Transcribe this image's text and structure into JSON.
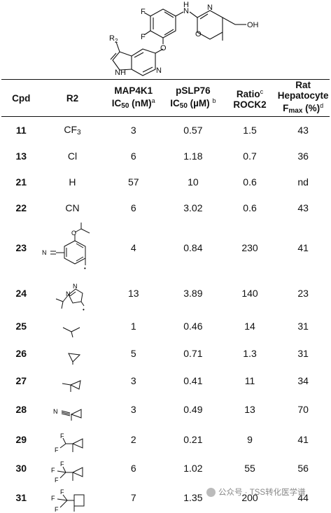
{
  "scaffold": {
    "atoms": {
      "F": "F",
      "N": "N",
      "H": "H",
      "O": "O",
      "OH": "OH",
      "R2": "R",
      "R2sub": "2",
      "NH": "NH"
    }
  },
  "table": {
    "headers": {
      "cpd": "Cpd",
      "r2": "R2",
      "map4k1_l1": "MAP4K1",
      "map4k1_l2a": "IC",
      "map4k1_l2sub": "50",
      "map4k1_l2b": " (nM)",
      "map4k1_sup": "a",
      "pslp76_l1": "pSLP76",
      "pslp76_l2a": "IC",
      "pslp76_l2sub": "50",
      "pslp76_l2b": " (µM) ",
      "pslp76_sup": "b",
      "ratio_l1": "Ratio",
      "ratio_sup": "c",
      "ratio_l2": "ROCK2",
      "rat_l1": "Rat",
      "rat_l2": "Hepatocyte",
      "rat_l3a": "F",
      "rat_l3sub": "max",
      "rat_l3b": " (%)",
      "rat_sup": "d"
    },
    "rows": [
      {
        "cpd": "11",
        "r2_text": "CF",
        "r2_sub": "3",
        "r2_structure": "",
        "map4k1": "3",
        "pslp76": "0.57",
        "ratio": "1.5",
        "fmax": "43"
      },
      {
        "cpd": "13",
        "r2_text": "Cl",
        "r2_sub": "",
        "r2_structure": "",
        "map4k1": "6",
        "pslp76": "1.18",
        "ratio": "0.7",
        "fmax": "36"
      },
      {
        "cpd": "21",
        "r2_text": "H",
        "r2_sub": "",
        "r2_structure": "",
        "map4k1": "57",
        "pslp76": "10",
        "ratio": "0.6",
        "fmax": "nd"
      },
      {
        "cpd": "22",
        "r2_text": "CN",
        "r2_sub": "",
        "r2_structure": "",
        "map4k1": "6",
        "pslp76": "3.02",
        "ratio": "0.6",
        "fmax": "43"
      },
      {
        "cpd": "23",
        "r2_text": "",
        "r2_sub": "",
        "r2_structure": "2-isopropoxy-5-cyanophenyl",
        "map4k1": "4",
        "pslp76": "0.84",
        "ratio": "230",
        "fmax": "41"
      },
      {
        "cpd": "24",
        "r2_text": "",
        "r2_sub": "",
        "r2_structure": "1-isopropyl-pyrazol-5-yl",
        "map4k1": "13",
        "pslp76": "3.89",
        "ratio": "140",
        "fmax": "23"
      },
      {
        "cpd": "25",
        "r2_text": "",
        "r2_sub": "",
        "r2_structure": "isopropyl",
        "map4k1": "1",
        "pslp76": "0.46",
        "ratio": "14",
        "fmax": "31"
      },
      {
        "cpd": "26",
        "r2_text": "",
        "r2_sub": "",
        "r2_structure": "cyclopropyl",
        "map4k1": "5",
        "pslp76": "0.71",
        "ratio": "1.3",
        "fmax": "31"
      },
      {
        "cpd": "27",
        "r2_text": "",
        "r2_sub": "",
        "r2_structure": "1-methylcyclopropyl",
        "map4k1": "3",
        "pslp76": "0.41",
        "ratio": "11",
        "fmax": "34"
      },
      {
        "cpd": "28",
        "r2_text": "",
        "r2_sub": "",
        "r2_structure": "1-cyanocyclopropyl",
        "map4k1": "3",
        "pslp76": "0.49",
        "ratio": "13",
        "fmax": "70"
      },
      {
        "cpd": "29",
        "r2_text": "",
        "r2_sub": "",
        "r2_structure": "1-(difluoromethyl)cyclopropyl",
        "map4k1": "2",
        "pslp76": "0.21",
        "ratio": "9",
        "fmax": "41"
      },
      {
        "cpd": "30",
        "r2_text": "",
        "r2_sub": "",
        "r2_structure": "1-(trifluoromethyl)cyclopropyl",
        "map4k1": "6",
        "pslp76": "1.02",
        "ratio": "55",
        "fmax": "56"
      },
      {
        "cpd": "31",
        "r2_text": "",
        "r2_sub": "",
        "r2_structure": "1-(trifluoromethyl)cyclobutyl",
        "map4k1": "7",
        "pslp76": "1.35",
        "ratio": "200",
        "fmax": "44"
      }
    ],
    "row_labels": {
      "CN": "N",
      "F": "F"
    }
  },
  "watermark": {
    "text": "公众号 · TSS转化医学谱"
  }
}
